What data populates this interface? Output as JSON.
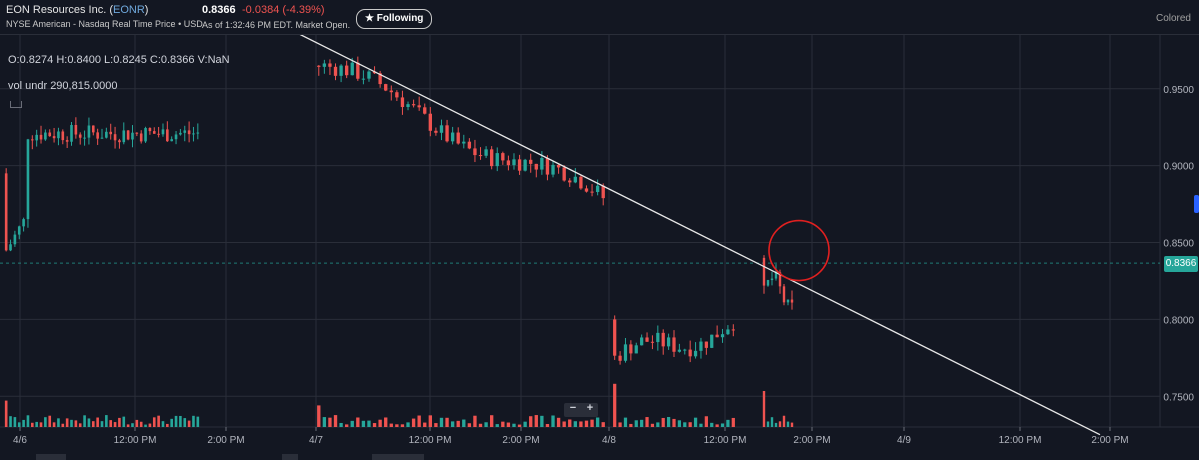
{
  "header": {
    "company": "EON Resources Inc. (",
    "ticker": "EONR",
    "company_end": ")",
    "subtitle": "NYSE American - Nasdaq Real Time Price • USD",
    "price": "0.8366",
    "change": "-0.0384",
    "change_pct": "(-4.39%)",
    "as_of": "As of 1:32:46 PM EDT. Market Open.",
    "follow_label": "Following",
    "colored_label": "Colored"
  },
  "legend": {
    "ohlc": "O:0.8274   H:0.8400   L:0.8245   C:0.8366   V:NaN",
    "vol_undr": "vol undr   290,815.0000"
  },
  "zoom": {
    "minus": "−",
    "plus": "+"
  },
  "colors": {
    "up": "#26a69a",
    "down": "#ef5350",
    "bg": "#131722",
    "grid": "#2a2e39",
    "trendline": "#e8e8e8",
    "highlight": "#e02020"
  },
  "chart_data": {
    "type": "candlestick",
    "price_ticks": [
      "0.9500",
      "0.9000",
      "0.8500",
      "0.8000",
      "0.7500"
    ],
    "ylim": [
      0.73,
      0.985
    ],
    "last_price_label": "0.8366",
    "x_ticks": [
      "4/6",
      "12:00 PM",
      "2:00 PM",
      "4/7",
      "12:00 PM",
      "2:00 PM",
      "4/8",
      "12:00 PM",
      "2:00 PM",
      "4/9",
      "12:00 PM",
      "2:00 PM"
    ],
    "trendline": {
      "from": {
        "bar_index": 5,
        "price": 0.987
      },
      "to": {
        "bar_index": 192,
        "price": 0.725
      }
    },
    "highlight_circle": {
      "bar_index": 140,
      "price": 0.85
    },
    "segments": [
      {
        "label": "4/6",
        "bars": 45,
        "open": 0.895,
        "close": 0.905,
        "low": 0.833,
        "high": 0.921
      },
      {
        "label": "4/7",
        "bars": 52,
        "open": 0.965,
        "close": 0.876,
        "low": 0.865,
        "high": 0.97
      },
      {
        "label": "4/8 AM",
        "bars": 23,
        "open": 0.8,
        "close": 0.782,
        "low": 0.745,
        "high": 0.8
      },
      {
        "label": "4/8 PM",
        "bars": 8,
        "open": 0.84,
        "close": 0.8366,
        "low": 0.785,
        "high": 0.84
      }
    ]
  }
}
